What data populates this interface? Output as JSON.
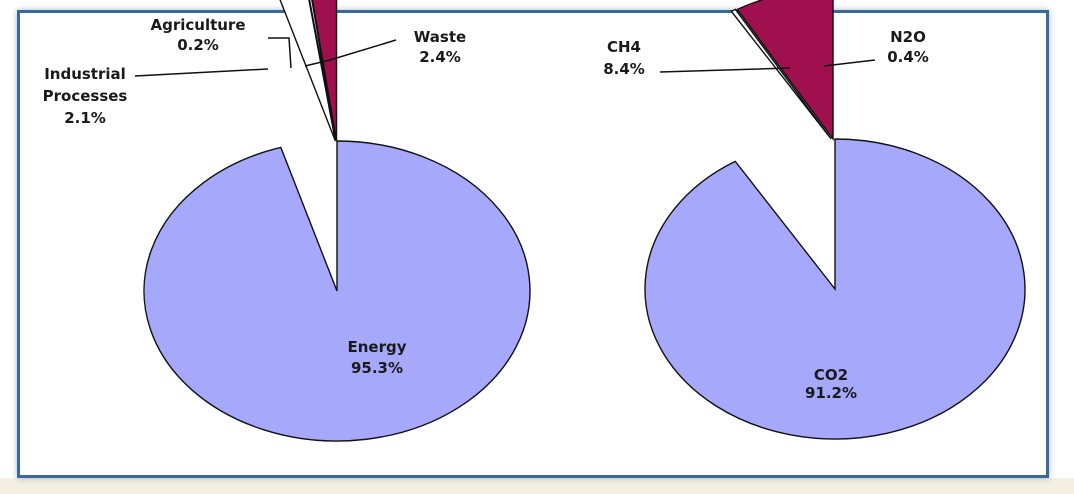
{
  "colors": {
    "border": "#3b6a9a",
    "blue": "#a6a8fb",
    "magenta": "#a0104f",
    "white": "#ffffff",
    "outline": "#111111"
  },
  "chart_data": [
    {
      "type": "pie",
      "title": "",
      "slices": [
        {
          "label": "Energy",
          "value": 95.3,
          "value_label": "95.3%",
          "color": "#a6a8fb"
        },
        {
          "label": "Industrial Processes",
          "value": 2.1,
          "value_label": "2.1%",
          "color": "#a0104f"
        },
        {
          "label": "Agriculture",
          "value": 0.2,
          "value_label": "0.2%",
          "color": "#ffffff"
        },
        {
          "label": "Waste",
          "value": 2.4,
          "value_label": "2.4%",
          "color": "#ffffff"
        }
      ],
      "exploded": true
    },
    {
      "type": "pie",
      "title": "",
      "slices": [
        {
          "label": "CO2",
          "value": 91.2,
          "value_label": "91.2%",
          "color": "#a6a8fb"
        },
        {
          "label": "CH4",
          "value": 8.4,
          "value_label": "8.4%",
          "color": "#a0104f"
        },
        {
          "label": "N2O",
          "value": 0.4,
          "value_label": "0.4%",
          "color": "#ffffff"
        }
      ],
      "exploded": true
    }
  ],
  "labels": {
    "energy_name": "Energy",
    "energy_value": "95.3%",
    "industrial_line1": "Industrial",
    "industrial_line2": "Processes",
    "industrial_value": "2.1%",
    "agriculture_name": "Agriculture",
    "agriculture_value": "0.2%",
    "waste_name": "Waste",
    "waste_value": "2.4%",
    "co2_name": "CO2",
    "co2_value": "91.2%",
    "ch4_name": "CH4",
    "ch4_value": "8.4%",
    "n2o_name": "N2O",
    "n2o_value": "0.4%"
  }
}
